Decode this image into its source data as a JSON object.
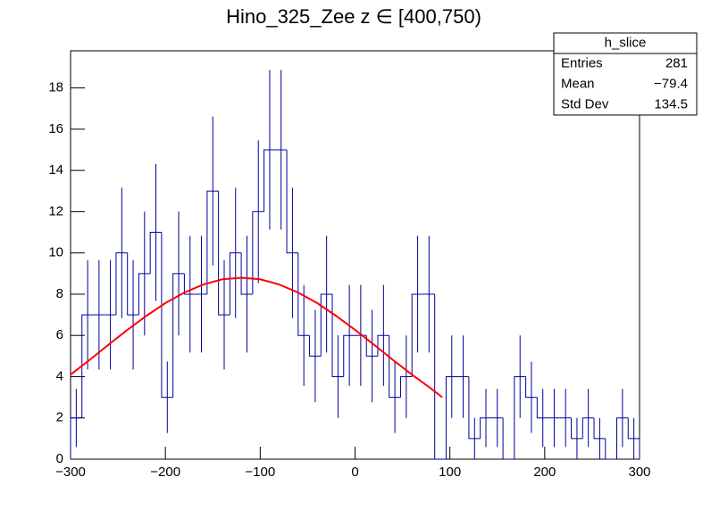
{
  "chart_data": {
    "type": "histogram",
    "title": "Hino_325_Zee z  ∈ [400,750)",
    "bins": [
      -300,
      -288,
      -276,
      -264,
      -252,
      -240,
      -228,
      -216,
      -204,
      -192,
      -180,
      -168,
      -156,
      -144,
      -132,
      -120,
      -108,
      -96,
      -84,
      -72,
      -60,
      -48,
      -36,
      -24,
      -12,
      0,
      12,
      24,
      36,
      48,
      60,
      72,
      84,
      96,
      108,
      120,
      132,
      144,
      156,
      168,
      180,
      192,
      204,
      216,
      228,
      240,
      252,
      264,
      276,
      288,
      300
    ],
    "values": [
      2,
      7,
      7,
      7,
      10,
      7,
      9,
      11,
      3,
      9,
      8,
      8,
      13,
      7,
      10,
      8,
      12,
      15,
      15,
      10,
      6,
      5,
      8,
      4,
      6,
      6,
      5,
      6,
      3,
      4,
      8,
      8,
      0,
      4,
      4,
      1,
      2,
      2,
      0,
      4,
      3,
      2,
      2,
      2,
      1,
      2,
      1,
      0,
      2,
      1
    ],
    "errors": [
      1.41,
      2.65,
      2.65,
      2.65,
      3.16,
      2.65,
      3,
      3.32,
      1.73,
      3,
      2.83,
      2.83,
      3.61,
      2.65,
      3.16,
      2.83,
      3.46,
      3.87,
      3.87,
      3.16,
      2.45,
      2.24,
      2.83,
      2,
      2.45,
      2.45,
      2.24,
      2.45,
      1.73,
      2,
      2.83,
      2.83,
      0,
      2,
      2,
      1,
      1.41,
      1.41,
      0,
      2,
      1.73,
      1.41,
      1.41,
      1.41,
      1,
      1.41,
      1,
      0,
      1.41,
      1
    ],
    "color": "#000099",
    "fit": {
      "color": "#ff0000",
      "x": [
        -300,
        -280,
        -260,
        -240,
        -220,
        -200,
        -180,
        -160,
        -140,
        -120,
        -100,
        -80,
        -60,
        -40,
        -20,
        0,
        20,
        40,
        60,
        80,
        92
      ],
      "values": [
        4.1,
        4.81,
        5.55,
        6.27,
        6.95,
        7.57,
        8.08,
        8.47,
        8.72,
        8.8,
        8.72,
        8.47,
        8.08,
        7.57,
        6.95,
        6.27,
        5.55,
        4.81,
        4.1,
        3.43,
        3.0
      ]
    },
    "xlim": [
      -300,
      300
    ],
    "xticks": [
      {
        "value": -300,
        "label": "−300"
      },
      {
        "value": -200,
        "label": "−200"
      },
      {
        "value": -100,
        "label": "−100"
      },
      0,
      100,
      200,
      300
    ],
    "ylim": [
      0,
      19.8
    ],
    "yticks": [
      0,
      2,
      4,
      6,
      8,
      10,
      12,
      14,
      16,
      18
    ],
    "stats": {
      "title": "h_slice",
      "rows": [
        [
          "Entries",
          "281"
        ],
        [
          "Mean",
          "−79.4"
        ],
        [
          "Std Dev",
          "134.5"
        ]
      ]
    }
  }
}
